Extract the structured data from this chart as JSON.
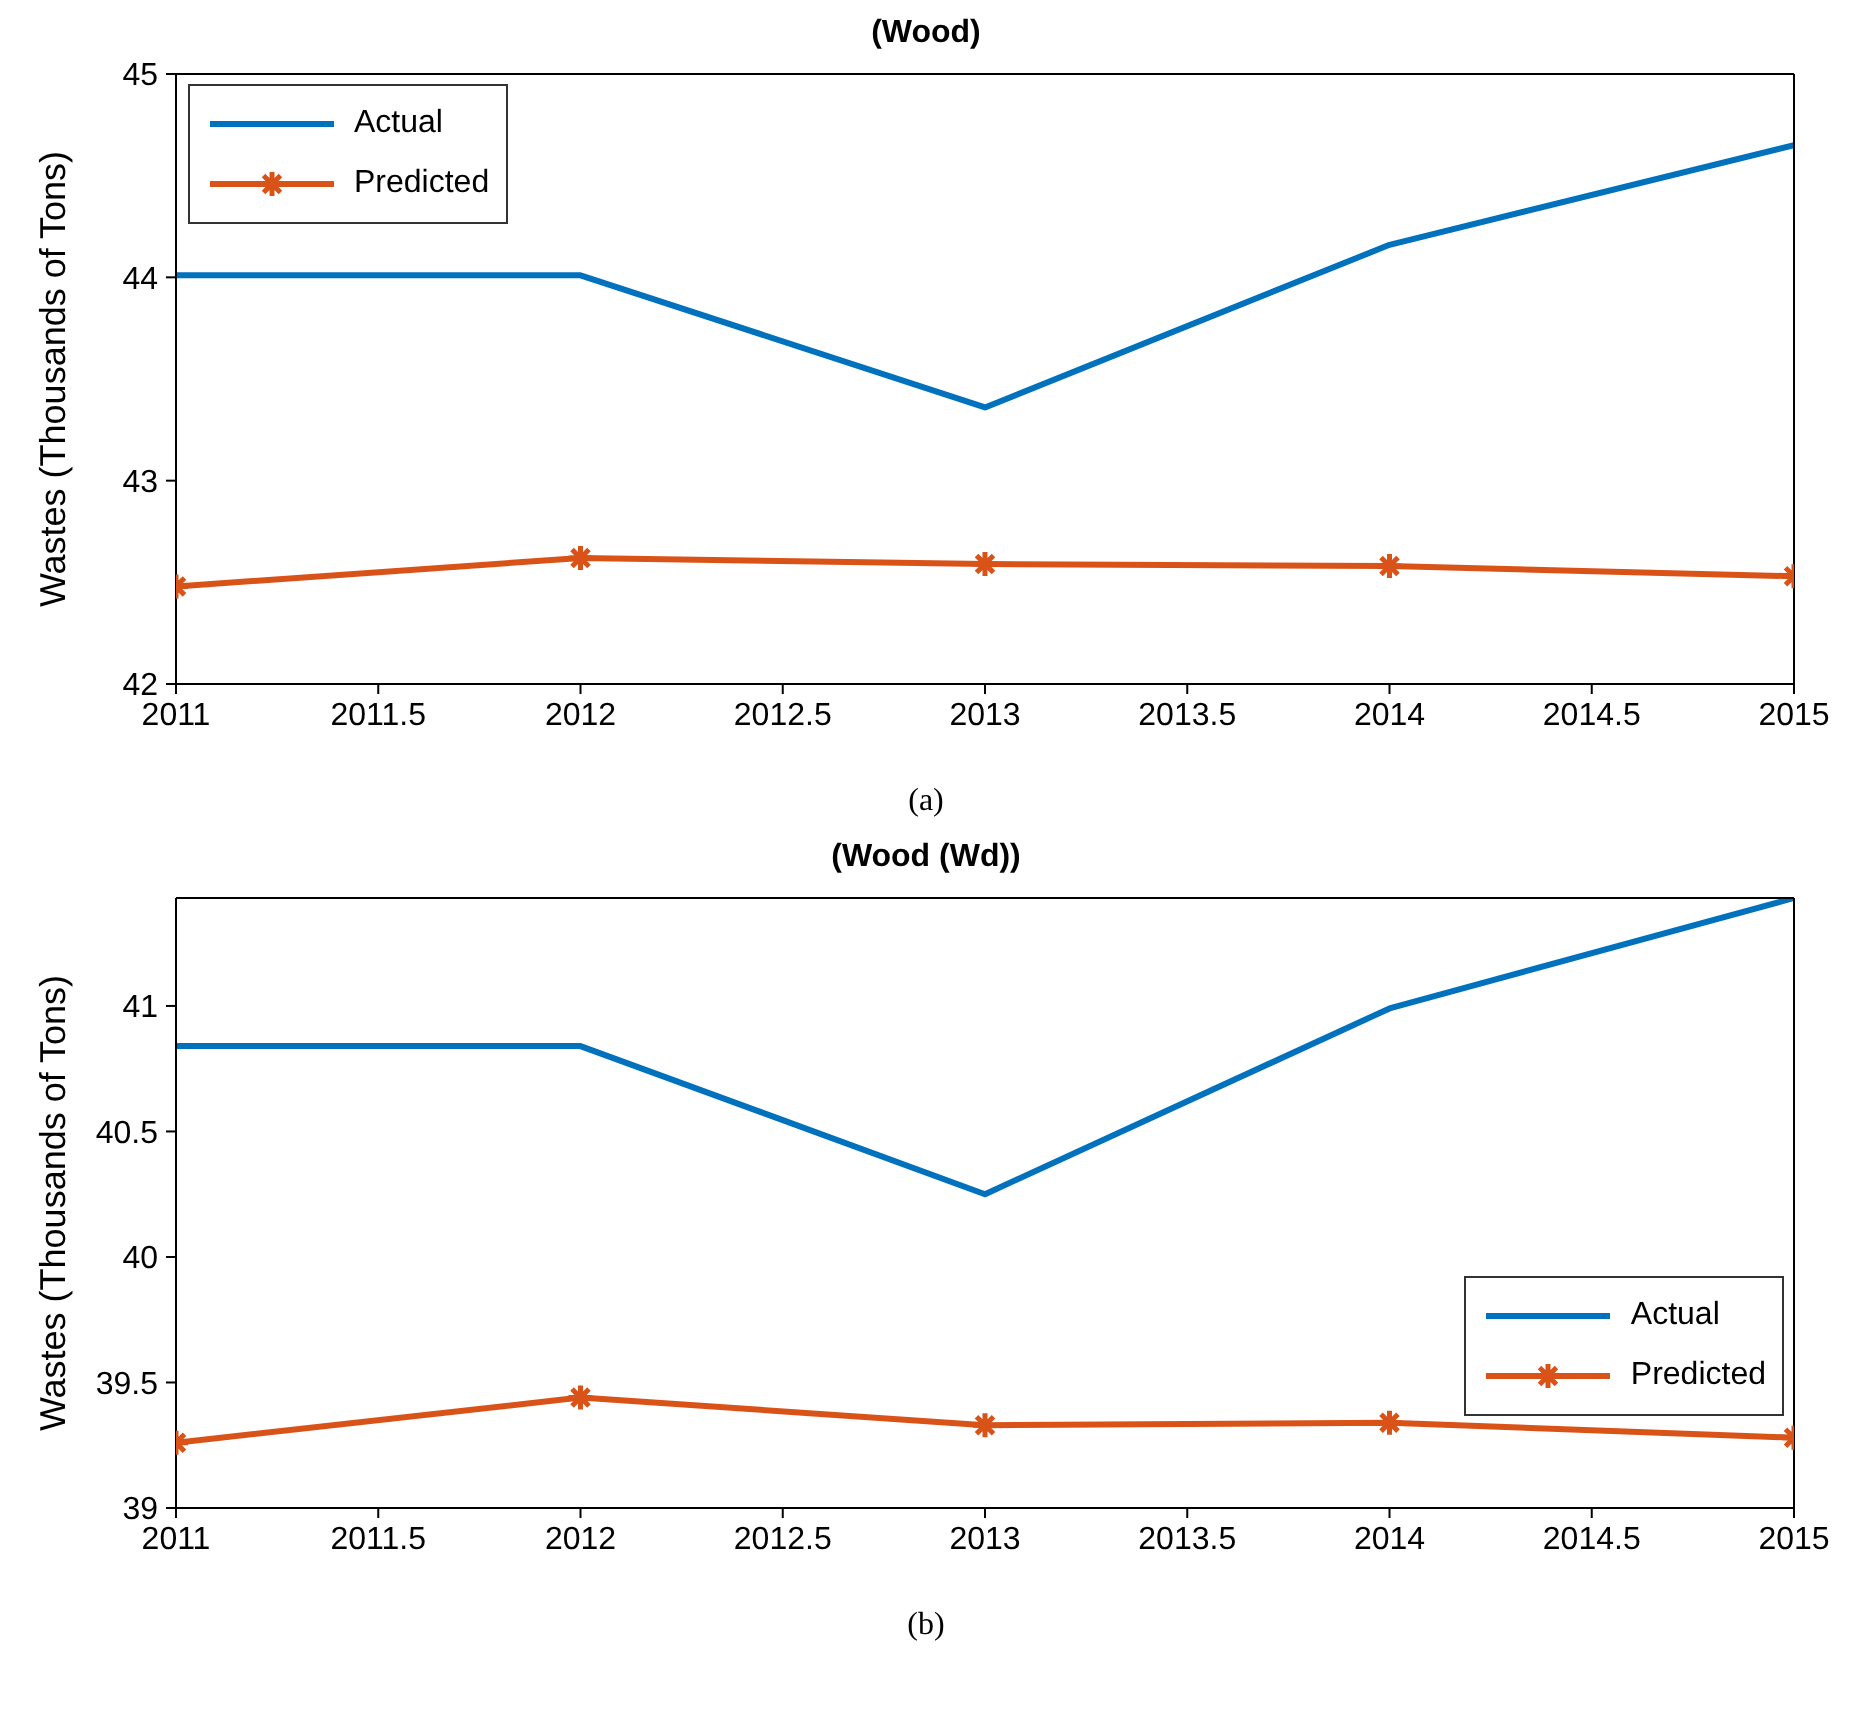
{
  "chart_data": [
    {
      "type": "line",
      "title": "(Wood)",
      "ylabel": "Wastes  (Thousands  of  Tons)",
      "x": [
        2011,
        2012,
        2013,
        2014,
        2015
      ],
      "xlim": [
        2011,
        2015
      ],
      "xticks": [
        2011,
        2011.5,
        2012,
        2012.5,
        2013,
        2013.5,
        2014,
        2014.5,
        2015
      ],
      "ylim": [
        42,
        45
      ],
      "yticks": [
        42,
        43,
        44,
        45
      ],
      "legend": "top left",
      "line_style": "solid",
      "annotations": [
        "(a)"
      ],
      "series": [
        {
          "name": "Actual",
          "color": "#0072bd",
          "marker": "none",
          "values": [
            44.01,
            44.01,
            43.36,
            44.16,
            44.65
          ]
        },
        {
          "name": "Predicted",
          "color": "#d95319",
          "marker": "cross",
          "values": [
            42.48,
            42.62,
            42.59,
            42.58,
            42.53
          ]
        }
      ]
    },
    {
      "type": "line",
      "title": "(Wood (Wd))",
      "ylabel": "Wastes (Thousands of  Tons)",
      "x": [
        2011,
        2012,
        2013,
        2014,
        2015
      ],
      "xlim": [
        2011,
        2015
      ],
      "xticks": [
        2011,
        2011.5,
        2012,
        2012.5,
        2013,
        2013.5,
        2014,
        2014.5,
        2015
      ],
      "ylim": [
        39,
        41.43
      ],
      "yticks": [
        39,
        39.5,
        40,
        40.5,
        41
      ],
      "legend": "bottom right",
      "line_style": "solid",
      "annotations": [
        "(b)"
      ],
      "series": [
        {
          "name": "Actual",
          "color": "#0072bd",
          "marker": "none",
          "values": [
            40.84,
            40.84,
            40.25,
            40.99,
            41.43
          ]
        },
        {
          "name": "Predicted",
          "color": "#d95319",
          "marker": "cross",
          "values": [
            39.26,
            39.44,
            39.33,
            39.34,
            39.28
          ]
        }
      ]
    }
  ]
}
